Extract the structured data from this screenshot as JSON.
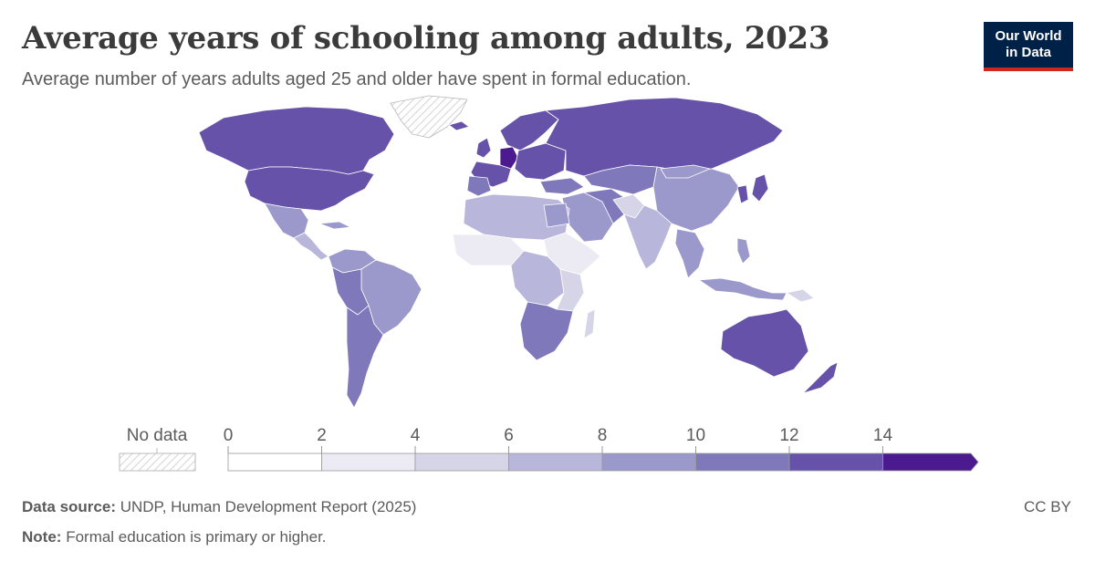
{
  "title": "Average years of schooling among adults, 2023",
  "subtitle": "Average number of years adults aged 25 and older have spent in formal education.",
  "logo": {
    "line1": "Our World",
    "line2": "in Data",
    "bg_color": "#002147",
    "accent_color": "#ce261e"
  },
  "legend": {
    "no_data_label": "No data",
    "ticks": [
      "0",
      "2",
      "4",
      "6",
      "8",
      "10",
      "12",
      "14"
    ],
    "bins": [
      {
        "from": 0,
        "to": 2,
        "color": "#ffffff"
      },
      {
        "from": 2,
        "to": 4,
        "color": "#ecebf4"
      },
      {
        "from": 4,
        "to": 6,
        "color": "#d6d5e8"
      },
      {
        "from": 6,
        "to": 8,
        "color": "#b9b6db"
      },
      {
        "from": 8,
        "to": 10,
        "color": "#9b98cb"
      },
      {
        "from": 10,
        "to": 12,
        "color": "#7f79bb"
      },
      {
        "from": 12,
        "to": 14,
        "color": "#6752a9"
      },
      {
        "from": 14,
        "to": null,
        "color": "#4b1a8e"
      }
    ]
  },
  "footer": {
    "source_label": "Data source:",
    "source_text": "UNDP, Human Development Report (2025)",
    "note_label": "Note:",
    "note_text": "Formal education is primary or higher.",
    "license": "CC BY"
  }
}
